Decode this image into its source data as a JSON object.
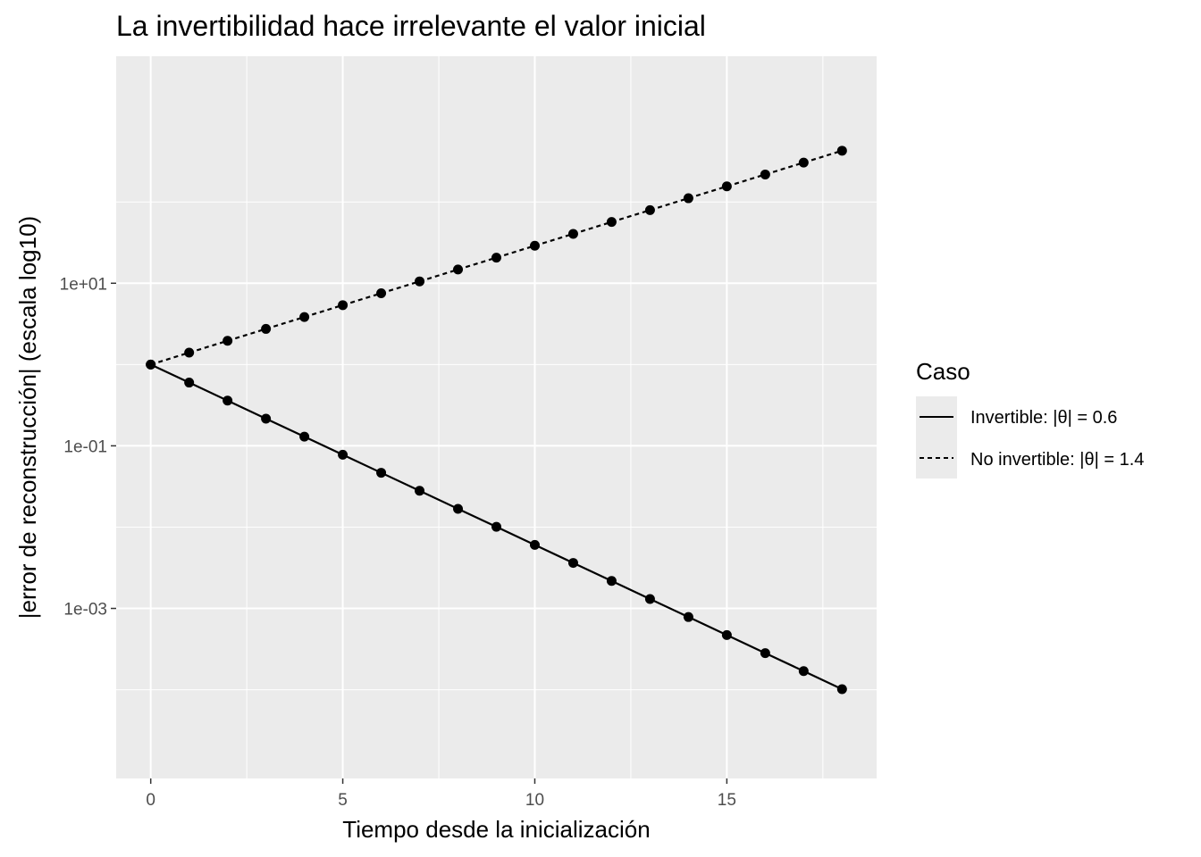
{
  "chart_data": {
    "type": "line",
    "title": "La invertibilidad hace irrelevante el valor inicial",
    "xlabel": "Tiempo desde la inicialización",
    "ylabel": "|error de reconstrucción| (escala log10)",
    "y_scale": "log10",
    "xlim": [
      -0.9,
      18.9
    ],
    "ylim": [
      8.1e-06,
      6200
    ],
    "x_ticks": [
      0,
      5,
      10,
      15
    ],
    "x_tick_labels": [
      "0",
      "5",
      "10",
      "15"
    ],
    "y_ticks": [
      0.001,
      0.1,
      10
    ],
    "y_tick_labels": [
      "1e-03",
      "1e-01",
      "1e+01"
    ],
    "y_minor_ticks": [
      0.0001,
      0.01,
      1,
      100,
      10000
    ],
    "grid": true,
    "panel_background": "#EBEBEB",
    "line_color": "#000000",
    "legend": {
      "title": "Caso",
      "position": "right",
      "entries": [
        {
          "label": "Invertible: |θ| = 0.6",
          "linetype": "solid"
        },
        {
          "label": "No invertible: |θ| = 1.4",
          "linetype": "dashed"
        }
      ]
    },
    "x": [
      0,
      1,
      2,
      3,
      4,
      5,
      6,
      7,
      8,
      9,
      10,
      11,
      12,
      13,
      14,
      15,
      16,
      17,
      18
    ],
    "series": [
      {
        "name": "Invertible: |θ| = 0.6",
        "linetype": "solid",
        "values": [
          1,
          0.6,
          0.36,
          0.216,
          0.1296,
          0.07776,
          0.046656,
          0.0279936,
          0.01679616,
          0.010077696,
          0.0060466176,
          0.00362797056,
          0.002176782336,
          0.0013060694016,
          0.00078364164096,
          0.000470184984576,
          0.0002821109907456,
          0.00016926659444736,
          0.000101559956668416
        ]
      },
      {
        "name": "No invertible: |θ| = 1.4",
        "linetype": "dashed",
        "values": [
          1,
          1.4,
          1.96,
          2.744,
          3.8416,
          5.37824,
          7.529536,
          10.5413504,
          14.75789056,
          20.661046784,
          28.9254654976,
          40.49565169664,
          56.693912375296,
          79.3714773254144,
          111.12006825558,
          155.568095557813,
          217.795333780938,
          304.913467293313,
          426.878854210638
        ]
      }
    ]
  }
}
